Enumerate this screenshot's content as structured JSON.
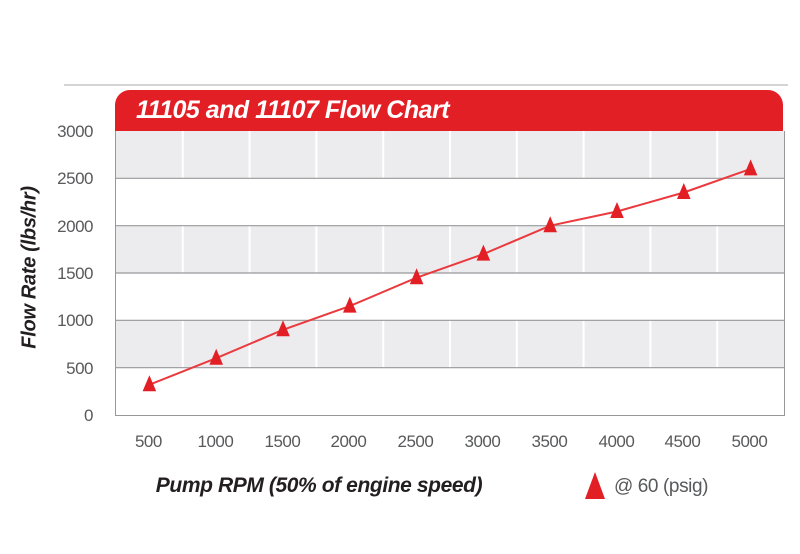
{
  "header": {
    "title": "11105 and 11107 Flow Chart",
    "bg_color": "#e31f26",
    "text_color": "#ffffff"
  },
  "chart_data": {
    "type": "line",
    "title": "11105 and 11107 Flow Chart",
    "xlabel": "Pump RPM (50% of engine speed)",
    "ylabel": "Flow Rate (lbs/hr)",
    "x": [
      500,
      1000,
      1500,
      2000,
      2500,
      3000,
      3500,
      4000,
      4500,
      5000
    ],
    "series": [
      {
        "name": "@ 60 (psig)",
        "marker": "triangle-up",
        "color": "#e31f26",
        "values": [
          320,
          600,
          900,
          1150,
          1450,
          1700,
          2000,
          2150,
          2350,
          2600
        ]
      }
    ],
    "ylim": [
      0,
      3000
    ],
    "ytick_interval": 500,
    "yticks": [
      0,
      500,
      1000,
      1500,
      2000,
      2500,
      3000
    ],
    "grid": "horizontal gridlines every 500; alternating gray row bands; white vertical column separators",
    "legend_position": "bottom-right"
  },
  "legend": {
    "label": "@ 60 (psig)",
    "marker": "red-triangle"
  },
  "colors": {
    "accent_red": "#e31f26",
    "line_red": "#ea3a3e",
    "band_gray": "#ececef",
    "gridline": "#98989a",
    "tick_text": "#58595b",
    "title_text": "#231f20"
  }
}
